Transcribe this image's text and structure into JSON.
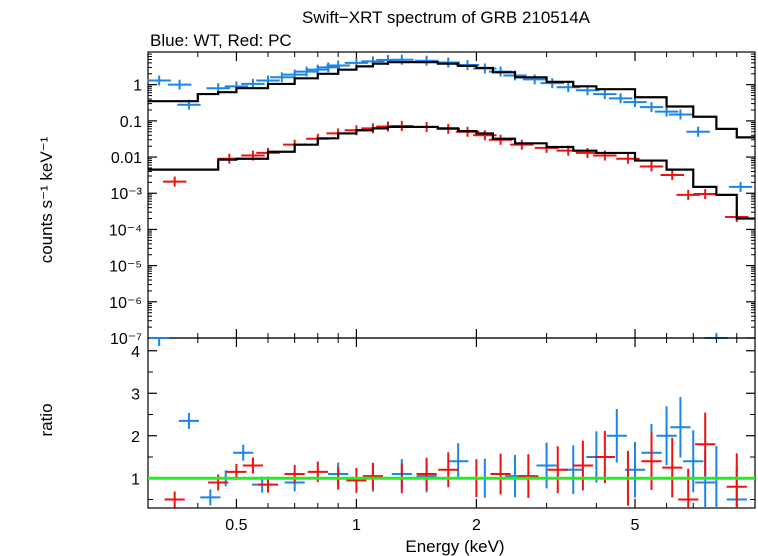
{
  "title": "Swift−XRT spectrum of GRB 210514A",
  "subtitle": "Blue: WT, Red: PC",
  "colors": {
    "wt": "#1a85e6",
    "pc": "#ee1111",
    "model": "#000000",
    "unity": "#22ee22",
    "axes": "#000000"
  },
  "chart_data": [
    {
      "type": "scatter",
      "title": "Swift−XRT spectrum of GRB 210514A",
      "subtitle": "Blue: WT, Red: PC",
      "xlabel": "Energy (keV)",
      "ylabel": "counts s⁻¹ keV⁻¹",
      "xscale": "log",
      "yscale": "log",
      "xlim": [
        0.3,
        10
      ],
      "ylim": [
        1e-07,
        8
      ],
      "x_ticks": [
        "0.5",
        "1",
        "2",
        "5"
      ],
      "y_ticks": [
        "1",
        "0.1",
        "0.01",
        "10⁻³",
        "10⁻⁴",
        "10⁻⁵",
        "10⁻⁶",
        "10⁻⁷"
      ],
      "series": [
        {
          "name": "WT",
          "color": "#1a85e6",
          "x": [
            0.32,
            0.36,
            0.38,
            0.45,
            0.5,
            0.55,
            0.6,
            0.65,
            0.7,
            0.75,
            0.8,
            0.85,
            0.9,
            1.0,
            1.1,
            1.2,
            1.3,
            1.5,
            1.7,
            1.9,
            2.1,
            2.3,
            2.5,
            2.8,
            3.1,
            3.4,
            3.8,
            4.2,
            4.6,
            5.0,
            5.5,
            6.0,
            6.5,
            7.2,
            8.0,
            9.2
          ],
          "y": [
            1.3,
            1.0,
            0.28,
            0.8,
            0.9,
            1.05,
            1.3,
            1.6,
            1.9,
            2.3,
            2.6,
            3.0,
            3.4,
            4.0,
            4.4,
            4.8,
            4.9,
            4.6,
            4.1,
            3.5,
            2.8,
            2.3,
            1.8,
            1.4,
            1.1,
            0.85,
            0.7,
            0.55,
            0.42,
            0.33,
            0.24,
            0.18,
            0.15,
            0.05,
            1e-07,
            0.0015
          ]
        },
        {
          "name": "PC",
          "color": "#ee1111",
          "x": [
            0.35,
            0.48,
            0.55,
            0.6,
            0.7,
            0.8,
            0.9,
            1.0,
            1.1,
            1.2,
            1.3,
            1.5,
            1.7,
            1.9,
            2.1,
            2.3,
            2.6,
            3.0,
            3.4,
            3.8,
            4.2,
            4.8,
            5.5,
            6.2,
            6.8,
            7.5,
            9.0
          ],
          "y": [
            0.0021,
            0.009,
            0.011,
            0.013,
            0.022,
            0.032,
            0.045,
            0.055,
            0.062,
            0.07,
            0.072,
            0.068,
            0.06,
            0.05,
            0.04,
            0.03,
            0.022,
            0.018,
            0.015,
            0.013,
            0.011,
            0.009,
            0.0055,
            0.0032,
            0.0009,
            0.00095,
            0.00022
          ]
        },
        {
          "name": "model WT",
          "color": "#000000",
          "line": true,
          "x": [
            0.3,
            0.35,
            0.4,
            0.45,
            0.5,
            0.6,
            0.7,
            0.8,
            0.9,
            1.0,
            1.1,
            1.2,
            1.4,
            1.6,
            1.8,
            2.0,
            2.2,
            2.5,
            3.0,
            3.5,
            4.0,
            5.0,
            6.0,
            7.0,
            8.0,
            9.0,
            10.0
          ],
          "y": [
            0.35,
            0.35,
            0.55,
            0.62,
            0.8,
            1.05,
            1.5,
            2.0,
            2.6,
            3.2,
            3.8,
            4.2,
            4.2,
            3.8,
            3.3,
            2.9,
            2.2,
            1.6,
            1.2,
            0.9,
            0.75,
            0.45,
            0.25,
            0.13,
            0.06,
            0.035,
            0.035
          ]
        },
        {
          "name": "model PC",
          "color": "#000000",
          "line": true,
          "x": [
            0.3,
            0.35,
            0.4,
            0.45,
            0.5,
            0.6,
            0.7,
            0.8,
            0.9,
            1.0,
            1.1,
            1.2,
            1.4,
            1.6,
            1.8,
            2.0,
            2.2,
            2.5,
            3.0,
            3.5,
            4.0,
            5.0,
            6.0,
            7.0,
            8.0,
            9.0,
            10.0
          ],
          "y": [
            0.0045,
            0.0045,
            0.0045,
            0.0085,
            0.009,
            0.014,
            0.022,
            0.033,
            0.045,
            0.055,
            0.062,
            0.068,
            0.068,
            0.062,
            0.052,
            0.045,
            0.032,
            0.024,
            0.019,
            0.015,
            0.013,
            0.008,
            0.0045,
            0.0015,
            0.0009,
            0.0002,
            0.0002
          ]
        }
      ]
    },
    {
      "type": "scatter",
      "xlabel": "Energy (keV)",
      "ylabel": "ratio",
      "xscale": "log",
      "xlim": [
        0.3,
        10
      ],
      "ylim": [
        0.3,
        4.3
      ],
      "x_ticks": [
        "0.5",
        "1",
        "2",
        "5"
      ],
      "y_ticks": [
        "1",
        "2",
        "3",
        "4"
      ],
      "reference_line": 1,
      "series": [
        {
          "name": "WT ratio",
          "color": "#1a85e6",
          "x": [
            0.32,
            0.38,
            0.43,
            0.47,
            0.52,
            0.58,
            0.7,
            0.9,
            1.1,
            1.3,
            1.5,
            1.8,
            2.1,
            2.5,
            3.0,
            3.5,
            4.0,
            4.5,
            5.0,
            5.5,
            6.0,
            6.5,
            7.0,
            7.5,
            8.0,
            9.0
          ],
          "y": [
            4.3,
            2.35,
            0.55,
            1.0,
            1.6,
            0.85,
            0.9,
            1.1,
            1.0,
            1.1,
            1.05,
            1.4,
            1.0,
            1.05,
            1.3,
            1.2,
            1.5,
            2.0,
            1.2,
            1.6,
            2.0,
            2.2,
            1.4,
            0.9,
            1.0,
            0.5
          ]
        },
        {
          "name": "PC ratio",
          "color": "#ee1111",
          "x": [
            0.35,
            0.45,
            0.5,
            0.55,
            0.6,
            0.7,
            0.8,
            0.9,
            1.0,
            1.1,
            1.3,
            1.5,
            1.7,
            2.0,
            2.3,
            2.7,
            3.2,
            3.7,
            4.2,
            4.8,
            5.5,
            6.2,
            6.8,
            7.5,
            9.0
          ],
          "y": [
            0.5,
            0.9,
            1.15,
            1.3,
            0.85,
            1.1,
            1.15,
            1.0,
            0.95,
            1.05,
            1.0,
            1.1,
            1.2,
            1.0,
            1.1,
            1.05,
            1.2,
            1.3,
            1.5,
            1.0,
            1.4,
            1.25,
            0.5,
            1.8,
            0.8
          ]
        }
      ]
    }
  ]
}
